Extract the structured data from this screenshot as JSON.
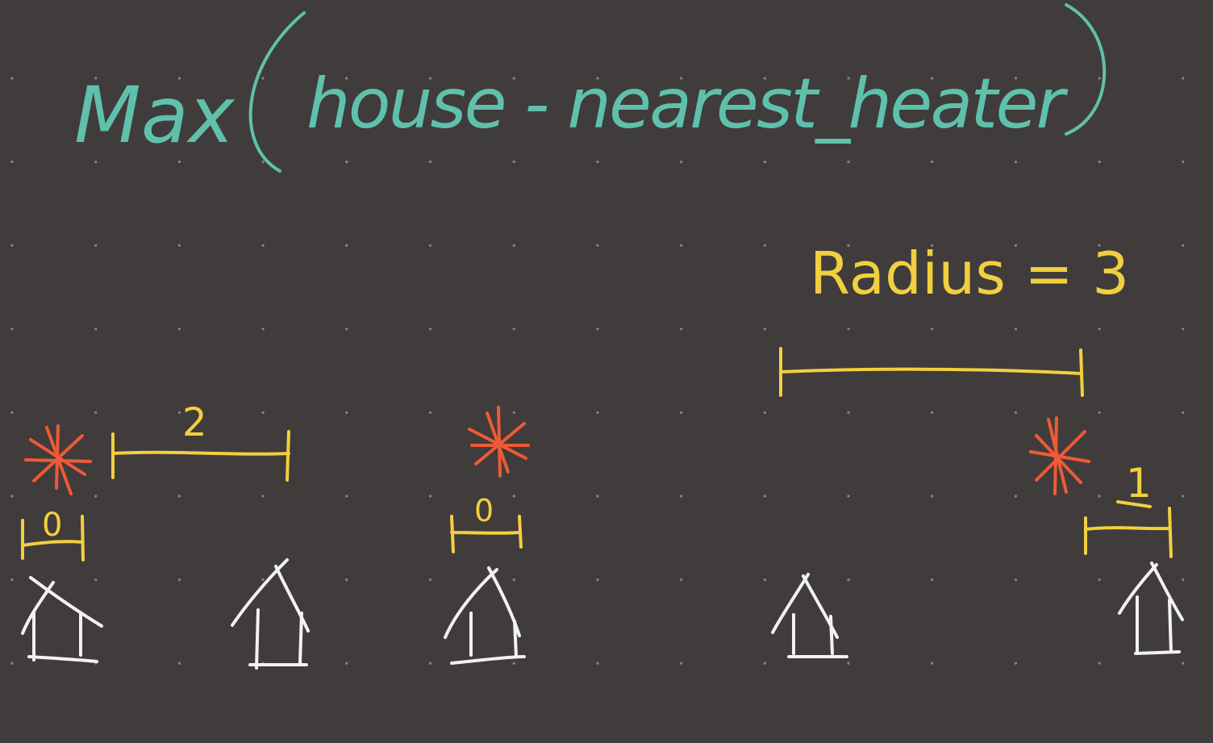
{
  "title": {
    "open": "Max",
    "expression": "house - nearest_heater"
  },
  "radius_label": "Radius = 3",
  "heaters": [
    {
      "name": "heater-1"
    },
    {
      "name": "heater-2"
    },
    {
      "name": "heater-3"
    }
  ],
  "houses": [
    {
      "name": "house-1"
    },
    {
      "name": "house-2"
    },
    {
      "name": "house-3"
    },
    {
      "name": "house-4"
    },
    {
      "name": "house-5"
    }
  ],
  "distance_labels": {
    "gap_heater1_house2": "2",
    "heater1_house1": "0",
    "heater2_house3": "0",
    "heater3_house5": "1"
  },
  "colors": {
    "background": "#403c3b",
    "dots": "#8a8685",
    "title_ink": "#5fc1ac",
    "measure_ink": "#f2cf3f",
    "heater_ink": "#ee5a36",
    "house_ink": "#f2f2f2"
  }
}
